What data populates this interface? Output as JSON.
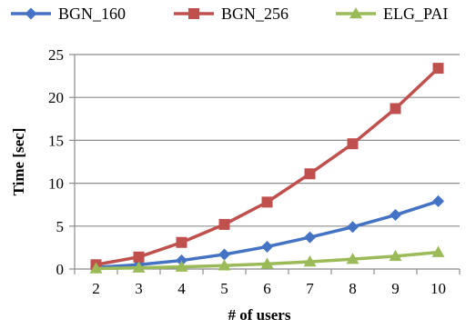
{
  "chart_data": {
    "type": "line",
    "title": "",
    "xlabel": "# of users",
    "ylabel": "Time [sec]",
    "x": [
      2,
      3,
      4,
      5,
      6,
      7,
      8,
      9,
      10
    ],
    "ylim": [
      0,
      25
    ],
    "yticks": [
      0,
      5,
      10,
      15,
      20,
      25
    ],
    "grid": true,
    "legend_position": "top",
    "series": [
      {
        "name": "BGN_160",
        "color": "#4472C4",
        "marker": "diamond",
        "values": [
          0.2,
          0.5,
          1.0,
          1.7,
          2.6,
          3.7,
          4.9,
          6.3,
          7.9
        ]
      },
      {
        "name": "BGN_256",
        "color": "#C0504D",
        "marker": "square",
        "values": [
          0.5,
          1.4,
          3.1,
          5.2,
          7.8,
          11.1,
          14.6,
          18.7,
          23.4
        ]
      },
      {
        "name": "ELG_PAI",
        "color": "#9BBB59",
        "marker": "triangle",
        "values": [
          0.05,
          0.15,
          0.25,
          0.4,
          0.6,
          0.85,
          1.15,
          1.5,
          1.95
        ]
      }
    ]
  }
}
